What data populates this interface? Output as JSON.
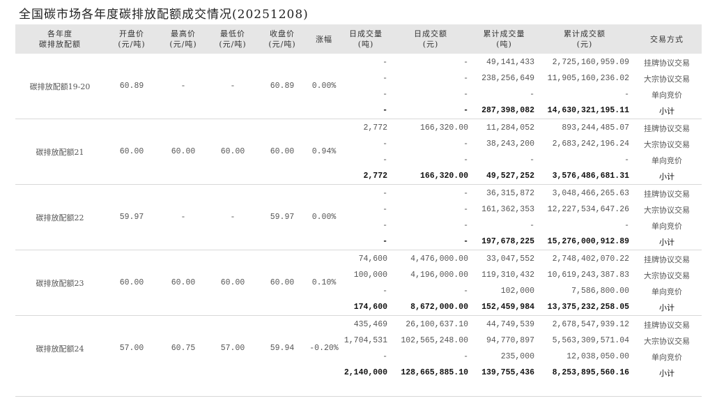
{
  "title": "全国碳市场各年度碳排放配额成交情况(20251208)",
  "headers": [
    "各年度\n碳排放配额",
    "开盘价\n(元/吨)",
    "最高价\n(元/吨)",
    "最低价\n(元/吨)",
    "收盘价\n(元/吨)",
    "涨幅",
    "日成交量\n(吨)",
    "日成交额\n(元)",
    "累计成交量\n(吨)",
    "累计成交额\n(元)",
    "交易方式"
  ],
  "groups": [
    {
      "name": "碳排放配额19-20",
      "open": "60.89",
      "high": "-",
      "low": "-",
      "close": "60.89",
      "change": "0.00%",
      "rows": [
        [
          "-",
          "-",
          "49,141,433",
          "2,725,160,959.09",
          "挂牌协议交易"
        ],
        [
          "-",
          "-",
          "238,256,649",
          "11,905,160,236.02",
          "大宗协议交易"
        ],
        [
          "-",
          "-",
          "-",
          "-",
          "单向竞价"
        ],
        [
          "-",
          "-",
          "287,398,082",
          "14,630,321,195.11",
          "小计"
        ]
      ]
    },
    {
      "name": "碳排放配额21",
      "open": "60.00",
      "high": "60.00",
      "low": "60.00",
      "close": "60.00",
      "change": "0.94%",
      "rows": [
        [
          "2,772",
          "166,320.00",
          "11,284,052",
          "893,244,485.07",
          "挂牌协议交易"
        ],
        [
          "-",
          "-",
          "38,243,200",
          "2,683,242,196.24",
          "大宗协议交易"
        ],
        [
          "-",
          "-",
          "-",
          "-",
          "单向竞价"
        ],
        [
          "2,772",
          "166,320.00",
          "49,527,252",
          "3,576,486,681.31",
          "小计"
        ]
      ]
    },
    {
      "name": "碳排放配额22",
      "open": "59.97",
      "high": "-",
      "low": "-",
      "close": "59.97",
      "change": "0.00%",
      "rows": [
        [
          "-",
          "-",
          "36,315,872",
          "3,048,466,265.63",
          "挂牌协议交易"
        ],
        [
          "-",
          "-",
          "161,362,353",
          "12,227,534,647.26",
          "大宗协议交易"
        ],
        [
          "-",
          "-",
          "-",
          "-",
          "单向竞价"
        ],
        [
          "-",
          "-",
          "197,678,225",
          "15,276,000,912.89",
          "小计"
        ]
      ]
    },
    {
      "name": "碳排放配额23",
      "open": "60.00",
      "high": "60.00",
      "low": "60.00",
      "close": "60.00",
      "change": "0.10%",
      "rows": [
        [
          "74,600",
          "4,476,000.00",
          "33,047,552",
          "2,748,402,070.22",
          "挂牌协议交易"
        ],
        [
          "100,000",
          "4,196,000.00",
          "119,310,432",
          "10,619,243,387.83",
          "大宗协议交易"
        ],
        [
          "-",
          "-",
          "102,000",
          "7,586,800.00",
          "单向竞价"
        ],
        [
          "174,600",
          "8,672,000.00",
          "152,459,984",
          "13,375,232,258.05",
          "小计"
        ]
      ]
    },
    {
      "name": "碳排放配额24",
      "open": "57.00",
      "high": "60.75",
      "low": "57.00",
      "close": "59.94",
      "change": "-0.20%",
      "rows": [
        [
          "435,469",
          "26,100,637.10",
          "44,749,539",
          "2,678,547,939.12",
          "挂牌协议交易"
        ],
        [
          "1,704,531",
          "102,565,248.00",
          "94,770,897",
          "5,563,309,571.04",
          "大宗协议交易"
        ],
        [
          "-",
          "-",
          "235,000",
          "12,038,050.00",
          "单向竞价"
        ],
        [
          "2,140,000",
          "128,665,885.10",
          "139,755,436",
          "8,253,895,560.16",
          "小计"
        ]
      ]
    }
  ]
}
